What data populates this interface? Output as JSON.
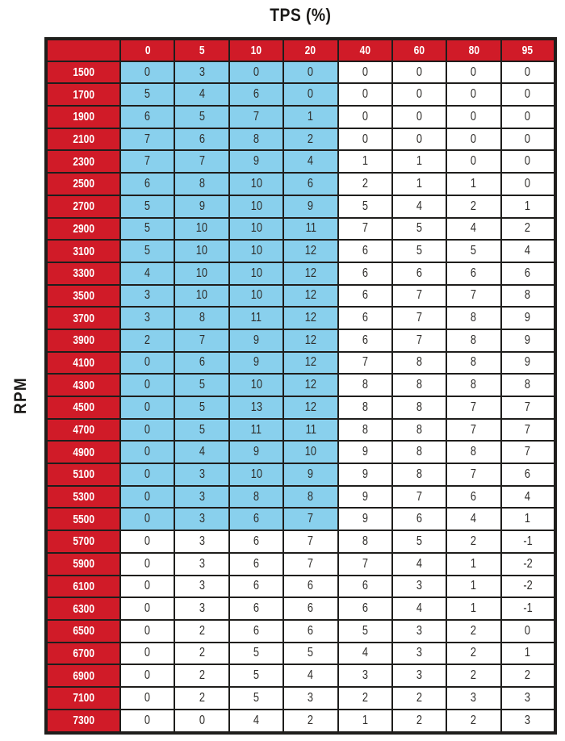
{
  "colors": {
    "header_bg": "#d01b28",
    "header_text": "#ffffff",
    "highlight_bg": "#89d0ed",
    "cell_bg": "#ffffff",
    "cell_text": "#2e2c29",
    "border": "#1f1e1c",
    "title_text": "#1b1a18"
  },
  "chart_data": {
    "type": "table",
    "title": "TPS (%)",
    "x_axis_label": "TPS (%)",
    "y_axis_label": "RPM",
    "column_headers": [
      "0",
      "5",
      "10",
      "20",
      "40",
      "60",
      "80",
      "95"
    ],
    "row_headers": [
      "1500",
      "1700",
      "1900",
      "2100",
      "2300",
      "2500",
      "2700",
      "2900",
      "3100",
      "3300",
      "3500",
      "3700",
      "3900",
      "4100",
      "4300",
      "4500",
      "4700",
      "4900",
      "5100",
      "5300",
      "5500",
      "5700",
      "5900",
      "6100",
      "6300",
      "6500",
      "6700",
      "6900",
      "7100",
      "7300"
    ],
    "values": [
      [
        0,
        3,
        0,
        0,
        0,
        0,
        0,
        0
      ],
      [
        5,
        4,
        6,
        0,
        0,
        0,
        0,
        0
      ],
      [
        6,
        5,
        7,
        1,
        0,
        0,
        0,
        0
      ],
      [
        7,
        6,
        8,
        2,
        0,
        0,
        0,
        0
      ],
      [
        7,
        7,
        9,
        4,
        1,
        1,
        0,
        0
      ],
      [
        6,
        8,
        10,
        6,
        2,
        1,
        1,
        0
      ],
      [
        5,
        9,
        10,
        9,
        5,
        4,
        2,
        1
      ],
      [
        5,
        10,
        10,
        11,
        7,
        5,
        4,
        2
      ],
      [
        5,
        10,
        10,
        12,
        6,
        5,
        5,
        4
      ],
      [
        4,
        10,
        10,
        12,
        6,
        6,
        6,
        6
      ],
      [
        3,
        10,
        10,
        12,
        6,
        7,
        7,
        8
      ],
      [
        3,
        8,
        11,
        12,
        6,
        7,
        8,
        9
      ],
      [
        2,
        7,
        9,
        12,
        6,
        7,
        8,
        9
      ],
      [
        0,
        6,
        9,
        12,
        7,
        8,
        8,
        9
      ],
      [
        0,
        5,
        10,
        12,
        8,
        8,
        8,
        8
      ],
      [
        0,
        5,
        13,
        12,
        8,
        8,
        7,
        7
      ],
      [
        0,
        5,
        11,
        11,
        8,
        8,
        7,
        7
      ],
      [
        0,
        4,
        9,
        10,
        9,
        8,
        8,
        7
      ],
      [
        0,
        3,
        10,
        9,
        9,
        8,
        7,
        6
      ],
      [
        0,
        3,
        8,
        8,
        9,
        7,
        6,
        4
      ],
      [
        0,
        3,
        6,
        7,
        9,
        6,
        4,
        1
      ],
      [
        0,
        3,
        6,
        7,
        8,
        5,
        2,
        -1
      ],
      [
        0,
        3,
        6,
        7,
        7,
        4,
        1,
        -2
      ],
      [
        0,
        3,
        6,
        6,
        6,
        3,
        1,
        -2
      ],
      [
        0,
        3,
        6,
        6,
        6,
        4,
        1,
        -1
      ],
      [
        0,
        2,
        6,
        6,
        5,
        3,
        2,
        0
      ],
      [
        0,
        2,
        5,
        5,
        4,
        3,
        2,
        1
      ],
      [
        0,
        2,
        5,
        4,
        3,
        3,
        2,
        2
      ],
      [
        0,
        2,
        5,
        3,
        2,
        2,
        3,
        3
      ],
      [
        0,
        0,
        4,
        2,
        1,
        2,
        2,
        3
      ]
    ],
    "highlighted_region": {
      "description": "Light-blue shaded cells cover TPS columns 0 through 20 for RPM rows 1500 through 5500",
      "row_start_index": 0,
      "row_end_index": 20,
      "col_start_index": 0,
      "col_end_index": 3
    },
    "legend_position": "none",
    "grid": true
  }
}
